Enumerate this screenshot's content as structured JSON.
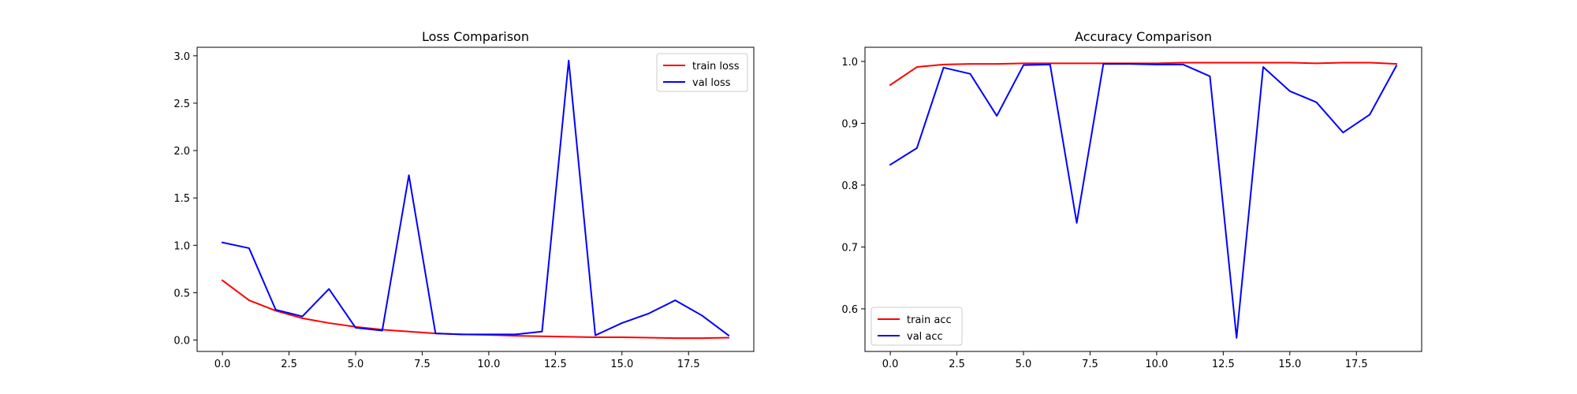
{
  "chart_data": [
    {
      "type": "line",
      "title": "Loss Comparison",
      "xlabel": "",
      "ylabel": "",
      "xlim": [
        -0.95,
        19.95
      ],
      "ylim": [
        -0.12,
        3.09
      ],
      "xticks": [
        0.0,
        2.5,
        5.0,
        7.5,
        10.0,
        12.5,
        15.0,
        17.5
      ],
      "xtick_labels": [
        "0.0",
        "2.5",
        "5.0",
        "7.5",
        "10.0",
        "12.5",
        "15.0",
        "17.5"
      ],
      "yticks": [
        0.0,
        0.5,
        1.0,
        1.5,
        2.0,
        2.5,
        3.0
      ],
      "ytick_labels": [
        "0.0",
        "0.5",
        "1.0",
        "1.5",
        "2.0",
        "2.5",
        "3.0"
      ],
      "grid": false,
      "legend_position": "top-right",
      "x": [
        0,
        1,
        2,
        3,
        4,
        5,
        6,
        7,
        8,
        9,
        10,
        11,
        12,
        13,
        14,
        15,
        16,
        17,
        18,
        19
      ],
      "series": [
        {
          "name": "train loss",
          "color": "#ff0000",
          "values": [
            0.63,
            0.42,
            0.31,
            0.23,
            0.18,
            0.14,
            0.11,
            0.09,
            0.07,
            0.06,
            0.055,
            0.045,
            0.04,
            0.035,
            0.03,
            0.03,
            0.025,
            0.02,
            0.02,
            0.025
          ]
        },
        {
          "name": "val loss",
          "color": "#0000ff",
          "values": [
            1.03,
            0.97,
            0.32,
            0.25,
            0.54,
            0.13,
            0.1,
            1.74,
            0.07,
            0.06,
            0.06,
            0.06,
            0.09,
            2.95,
            0.05,
            0.18,
            0.28,
            0.42,
            0.26,
            0.05
          ]
        }
      ]
    },
    {
      "type": "line",
      "title": "Accuracy Comparison",
      "xlabel": "",
      "ylabel": "",
      "xlim": [
        -0.95,
        19.95
      ],
      "ylim": [
        0.5311,
        1.0229
      ],
      "xticks": [
        0.0,
        2.5,
        5.0,
        7.5,
        10.0,
        12.5,
        15.0,
        17.5
      ],
      "xtick_labels": [
        "0.0",
        "2.5",
        "5.0",
        "7.5",
        "10.0",
        "12.5",
        "15.0",
        "17.5"
      ],
      "yticks": [
        0.6,
        0.7,
        0.8,
        0.9,
        1.0
      ],
      "ytick_labels": [
        "0.6",
        "0.7",
        "0.8",
        "0.9",
        "1.0"
      ],
      "grid": false,
      "legend_position": "bottom-left",
      "x": [
        0,
        1,
        2,
        3,
        4,
        5,
        6,
        7,
        8,
        9,
        10,
        11,
        12,
        13,
        14,
        15,
        16,
        17,
        18,
        19
      ],
      "series": [
        {
          "name": "train acc",
          "color": "#ff0000",
          "values": [
            0.962,
            0.991,
            0.995,
            0.996,
            0.996,
            0.997,
            0.997,
            0.997,
            0.997,
            0.997,
            0.997,
            0.998,
            0.998,
            0.998,
            0.998,
            0.998,
            0.997,
            0.998,
            0.998,
            0.996
          ]
        },
        {
          "name": "val acc",
          "color": "#0000ff",
          "values": [
            0.833,
            0.86,
            0.99,
            0.98,
            0.912,
            0.994,
            0.995,
            0.739,
            0.996,
            0.996,
            0.995,
            0.995,
            0.976,
            0.553,
            0.991,
            0.952,
            0.934,
            0.885,
            0.914,
            0.993
          ]
        }
      ]
    }
  ]
}
